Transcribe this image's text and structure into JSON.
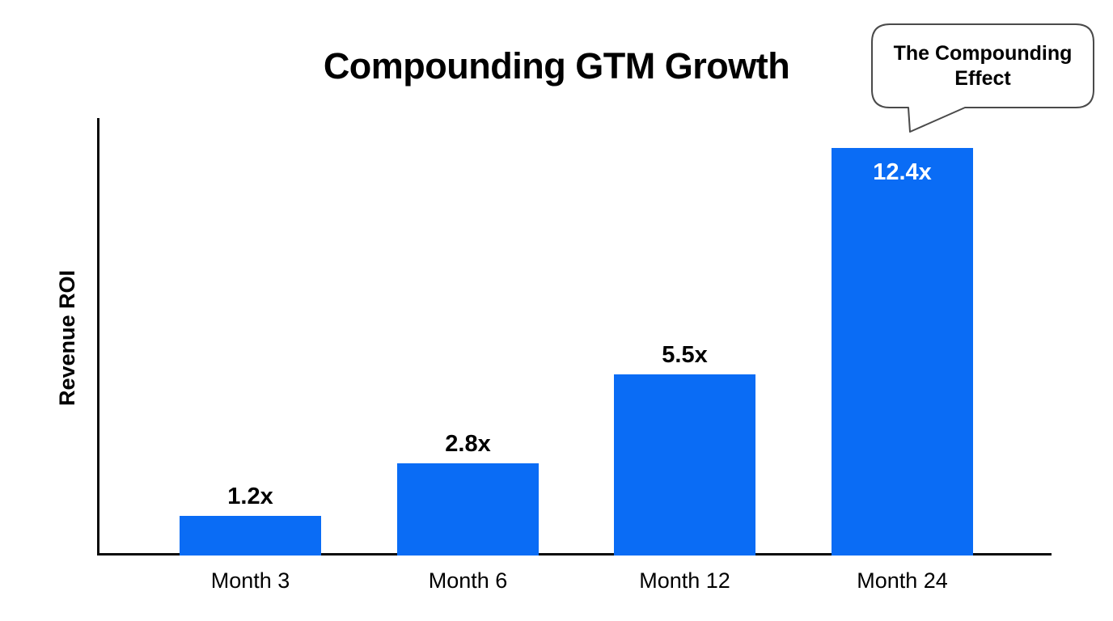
{
  "title": "Compounding GTM Growth",
  "ylabel": "Revenue ROI",
  "callout": {
    "text": "The Compounding Effect"
  },
  "colors": {
    "bar": "#0A6CF5",
    "axis": "#0A0A0A",
    "text": "#000000",
    "value_label_inside": "#FFFFFF",
    "callout_border": "#4A4A4A",
    "background": "#FFFFFF"
  },
  "chart_data": {
    "type": "bar",
    "title": "Compounding GTM Growth",
    "xlabel": "",
    "ylabel": "Revenue ROI",
    "categories": [
      "Month 3",
      "Month 6",
      "Month 12",
      "Month 24"
    ],
    "values": [
      1.2,
      2.8,
      5.5,
      12.4
    ],
    "value_labels": [
      "1.2x",
      "2.8x",
      "5.5x",
      "12.4x"
    ],
    "label_placement": [
      "above",
      "above",
      "above",
      "inside"
    ],
    "ylim": [
      0,
      13.3
    ],
    "grid": false,
    "legend": false,
    "annotation": {
      "text": "The Compounding Effect",
      "target": "Month 24"
    }
  }
}
